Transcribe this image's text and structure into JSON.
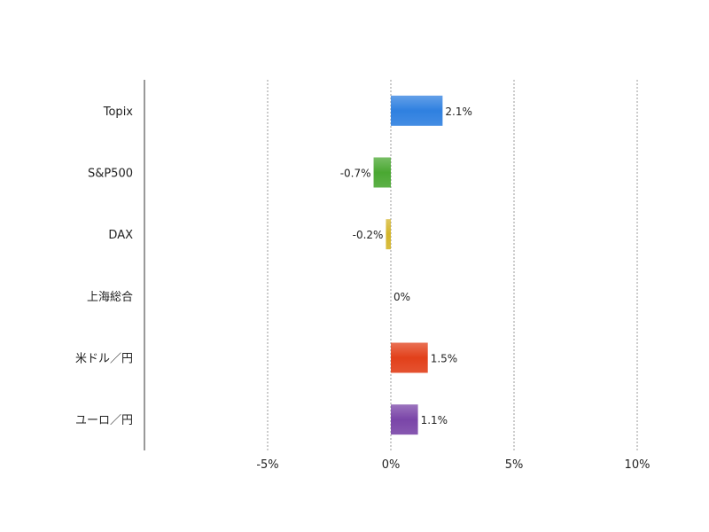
{
  "chart_data": {
    "type": "bar",
    "orientation": "horizontal",
    "categories": [
      "Topix",
      "S&P500",
      "DAX",
      "上海総合",
      "米ドル／円",
      "ユーロ／円"
    ],
    "values": [
      2.1,
      -0.7,
      -0.2,
      0,
      1.5,
      1.1
    ],
    "value_labels": [
      "2.1%",
      "-0.7%",
      "-0.2%",
      "0%",
      "1.5%",
      "1.1%"
    ],
    "colors": [
      "#2f80e0",
      "#4aa832",
      "#d4b52a",
      "#888888",
      "#e2401a",
      "#7a45a8"
    ],
    "xlim": [
      -10,
      10
    ],
    "xticks": [
      -5,
      0,
      5,
      10
    ],
    "xtick_labels": [
      "-5%",
      "0%",
      "5%",
      "10%"
    ],
    "grid": true
  }
}
